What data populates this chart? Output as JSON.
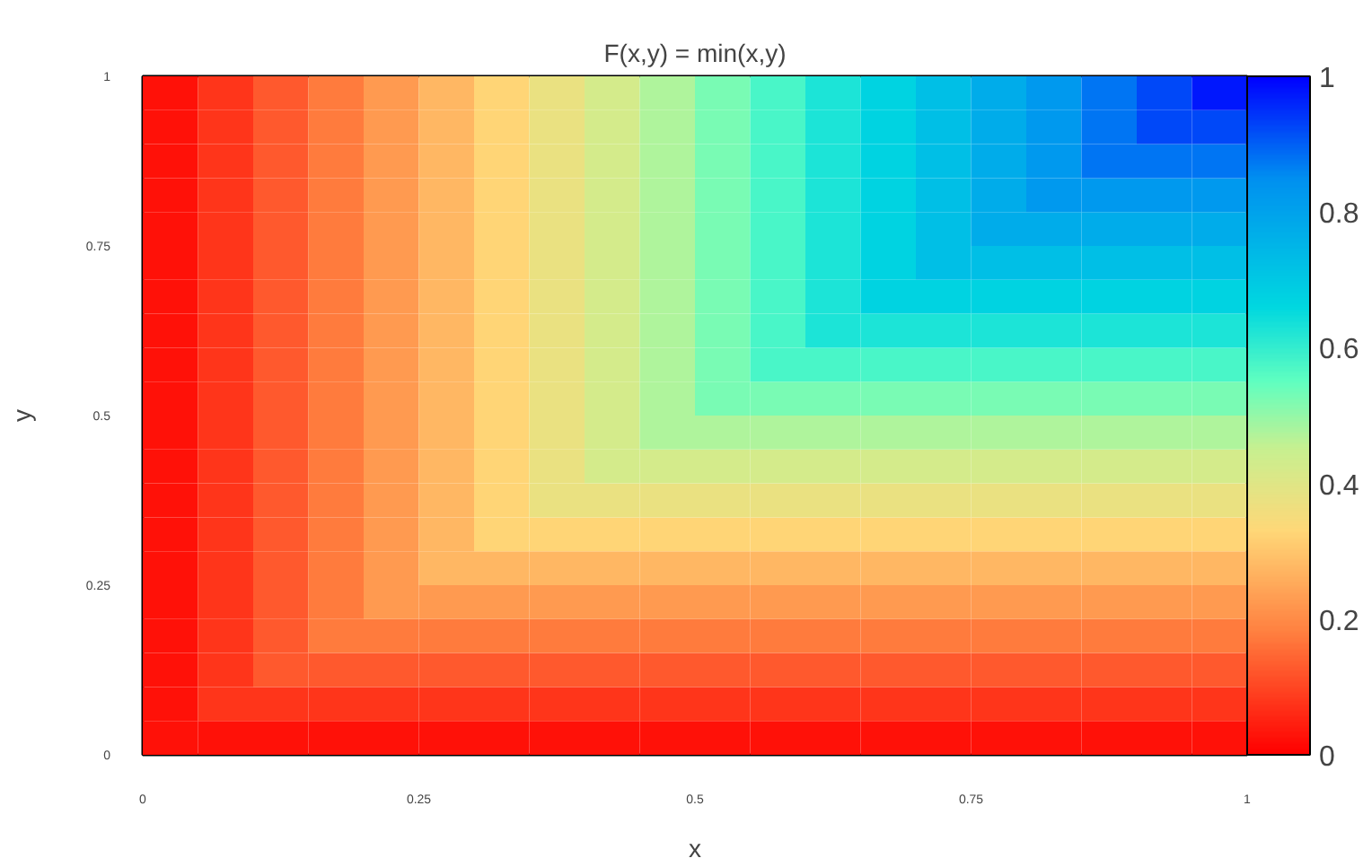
{
  "chart_data": {
    "type": "heatmap",
    "title": "F(x,y) = min(x,y)",
    "xlabel": "x",
    "ylabel": "y",
    "x": [
      0.025,
      0.075,
      0.125,
      0.175,
      0.225,
      0.275,
      0.325,
      0.375,
      0.425,
      0.475,
      0.525,
      0.575,
      0.625,
      0.675,
      0.725,
      0.775,
      0.825,
      0.875,
      0.925,
      0.975
    ],
    "y": [
      0.025,
      0.075,
      0.125,
      0.175,
      0.225,
      0.275,
      0.325,
      0.375,
      0.425,
      0.475,
      0.525,
      0.575,
      0.625,
      0.675,
      0.725,
      0.775,
      0.825,
      0.875,
      0.925,
      0.975
    ],
    "cells": [
      [
        0.025,
        0.025,
        0.025,
        0.025,
        0.025,
        0.025,
        0.025,
        0.025,
        0.025,
        0.025,
        0.025,
        0.025,
        0.025,
        0.025,
        0.025,
        0.025,
        0.025,
        0.025,
        0.025,
        0.025
      ],
      [
        0.025,
        0.075,
        0.075,
        0.075,
        0.075,
        0.075,
        0.075,
        0.075,
        0.075,
        0.075,
        0.075,
        0.075,
        0.075,
        0.075,
        0.075,
        0.075,
        0.075,
        0.075,
        0.075,
        0.075
      ],
      [
        0.025,
        0.075,
        0.125,
        0.125,
        0.125,
        0.125,
        0.125,
        0.125,
        0.125,
        0.125,
        0.125,
        0.125,
        0.125,
        0.125,
        0.125,
        0.125,
        0.125,
        0.125,
        0.125,
        0.125
      ],
      [
        0.025,
        0.075,
        0.125,
        0.175,
        0.175,
        0.175,
        0.175,
        0.175,
        0.175,
        0.175,
        0.175,
        0.175,
        0.175,
        0.175,
        0.175,
        0.175,
        0.175,
        0.175,
        0.175,
        0.175
      ],
      [
        0.025,
        0.075,
        0.125,
        0.175,
        0.225,
        0.225,
        0.225,
        0.225,
        0.225,
        0.225,
        0.225,
        0.225,
        0.225,
        0.225,
        0.225,
        0.225,
        0.225,
        0.225,
        0.225,
        0.225
      ],
      [
        0.025,
        0.075,
        0.125,
        0.175,
        0.225,
        0.275,
        0.275,
        0.275,
        0.275,
        0.275,
        0.275,
        0.275,
        0.275,
        0.275,
        0.275,
        0.275,
        0.275,
        0.275,
        0.275,
        0.275
      ],
      [
        0.025,
        0.075,
        0.125,
        0.175,
        0.225,
        0.275,
        0.325,
        0.325,
        0.325,
        0.325,
        0.325,
        0.325,
        0.325,
        0.325,
        0.325,
        0.325,
        0.325,
        0.325,
        0.325,
        0.325
      ],
      [
        0.025,
        0.075,
        0.125,
        0.175,
        0.225,
        0.275,
        0.325,
        0.375,
        0.375,
        0.375,
        0.375,
        0.375,
        0.375,
        0.375,
        0.375,
        0.375,
        0.375,
        0.375,
        0.375,
        0.375
      ],
      [
        0.025,
        0.075,
        0.125,
        0.175,
        0.225,
        0.275,
        0.325,
        0.375,
        0.425,
        0.425,
        0.425,
        0.425,
        0.425,
        0.425,
        0.425,
        0.425,
        0.425,
        0.425,
        0.425,
        0.425
      ],
      [
        0.025,
        0.075,
        0.125,
        0.175,
        0.225,
        0.275,
        0.325,
        0.375,
        0.425,
        0.475,
        0.475,
        0.475,
        0.475,
        0.475,
        0.475,
        0.475,
        0.475,
        0.475,
        0.475,
        0.475
      ],
      [
        0.025,
        0.075,
        0.125,
        0.175,
        0.225,
        0.275,
        0.325,
        0.375,
        0.425,
        0.475,
        0.525,
        0.525,
        0.525,
        0.525,
        0.525,
        0.525,
        0.525,
        0.525,
        0.525,
        0.525
      ],
      [
        0.025,
        0.075,
        0.125,
        0.175,
        0.225,
        0.275,
        0.325,
        0.375,
        0.425,
        0.475,
        0.525,
        0.575,
        0.575,
        0.575,
        0.575,
        0.575,
        0.575,
        0.575,
        0.575,
        0.575
      ],
      [
        0.025,
        0.075,
        0.125,
        0.175,
        0.225,
        0.275,
        0.325,
        0.375,
        0.425,
        0.475,
        0.525,
        0.575,
        0.625,
        0.625,
        0.625,
        0.625,
        0.625,
        0.625,
        0.625,
        0.625
      ],
      [
        0.025,
        0.075,
        0.125,
        0.175,
        0.225,
        0.275,
        0.325,
        0.375,
        0.425,
        0.475,
        0.525,
        0.575,
        0.625,
        0.675,
        0.675,
        0.675,
        0.675,
        0.675,
        0.675,
        0.675
      ],
      [
        0.025,
        0.075,
        0.125,
        0.175,
        0.225,
        0.275,
        0.325,
        0.375,
        0.425,
        0.475,
        0.525,
        0.575,
        0.625,
        0.675,
        0.725,
        0.725,
        0.725,
        0.725,
        0.725,
        0.725
      ],
      [
        0.025,
        0.075,
        0.125,
        0.175,
        0.225,
        0.275,
        0.325,
        0.375,
        0.425,
        0.475,
        0.525,
        0.575,
        0.625,
        0.675,
        0.725,
        0.775,
        0.775,
        0.775,
        0.775,
        0.775
      ],
      [
        0.025,
        0.075,
        0.125,
        0.175,
        0.225,
        0.275,
        0.325,
        0.375,
        0.425,
        0.475,
        0.525,
        0.575,
        0.625,
        0.675,
        0.725,
        0.775,
        0.825,
        0.825,
        0.825,
        0.825
      ],
      [
        0.025,
        0.075,
        0.125,
        0.175,
        0.225,
        0.275,
        0.325,
        0.375,
        0.425,
        0.475,
        0.525,
        0.575,
        0.625,
        0.675,
        0.725,
        0.775,
        0.825,
        0.875,
        0.875,
        0.875
      ],
      [
        0.025,
        0.075,
        0.125,
        0.175,
        0.225,
        0.275,
        0.325,
        0.375,
        0.425,
        0.475,
        0.525,
        0.575,
        0.625,
        0.675,
        0.725,
        0.775,
        0.825,
        0.875,
        0.925,
        0.925
      ],
      [
        0.025,
        0.075,
        0.125,
        0.175,
        0.225,
        0.275,
        0.325,
        0.375,
        0.425,
        0.475,
        0.525,
        0.575,
        0.625,
        0.675,
        0.725,
        0.775,
        0.825,
        0.875,
        0.925,
        0.975
      ]
    ],
    "xlim": [
      0,
      1
    ],
    "ylim": [
      0,
      1
    ],
    "xticks": [
      0,
      0.25,
      0.5,
      0.75,
      1
    ],
    "yticks": [
      0,
      0.25,
      0.5,
      0.75,
      1
    ],
    "clim": [
      0,
      1
    ],
    "cticks": [
      0,
      0.2,
      0.4,
      0.6,
      0.8,
      1
    ]
  }
}
